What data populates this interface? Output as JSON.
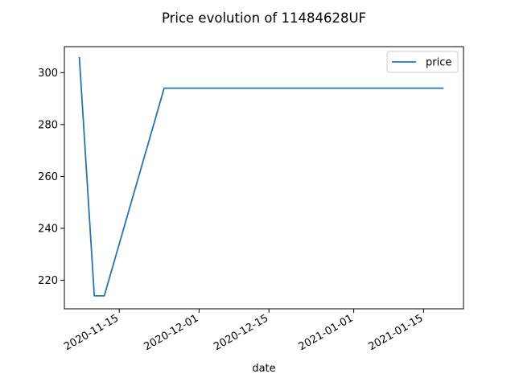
{
  "chart_data": {
    "type": "line",
    "title": "Price evolution of 11484628UF",
    "xlabel": "date",
    "ylabel": "",
    "x_tick_labels": [
      "2020-11-15",
      "2020-12-01",
      "2020-12-15",
      "2021-01-01",
      "2021-01-15"
    ],
    "y_tick_labels": [
      "220",
      "240",
      "260",
      "280",
      "300"
    ],
    "xlim": [
      "2020-11-04",
      "2021-01-23"
    ],
    "ylim": [
      209,
      310
    ],
    "grid": false,
    "legend_position": "top-right",
    "series": [
      {
        "name": "price",
        "color": "#1f77b4",
        "points": [
          {
            "x": "2020-11-07",
            "y": 306
          },
          {
            "x": "2020-11-10",
            "y": 214
          },
          {
            "x": "2020-11-12",
            "y": 214
          },
          {
            "x": "2020-11-24",
            "y": 294
          },
          {
            "x": "2021-01-19",
            "y": 294
          }
        ]
      }
    ]
  }
}
